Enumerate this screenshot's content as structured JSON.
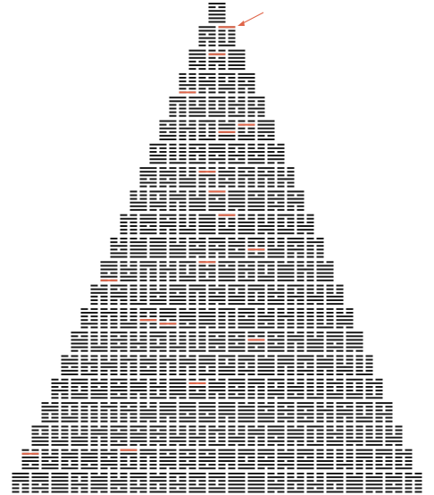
{
  "figure": {
    "kind": "hexagram-pyramid",
    "stroke_color": "#1a1a1a",
    "highlight_color": "#e0664a",
    "arrow_color": "#e0664a",
    "background": "#ffffff"
  }
}
